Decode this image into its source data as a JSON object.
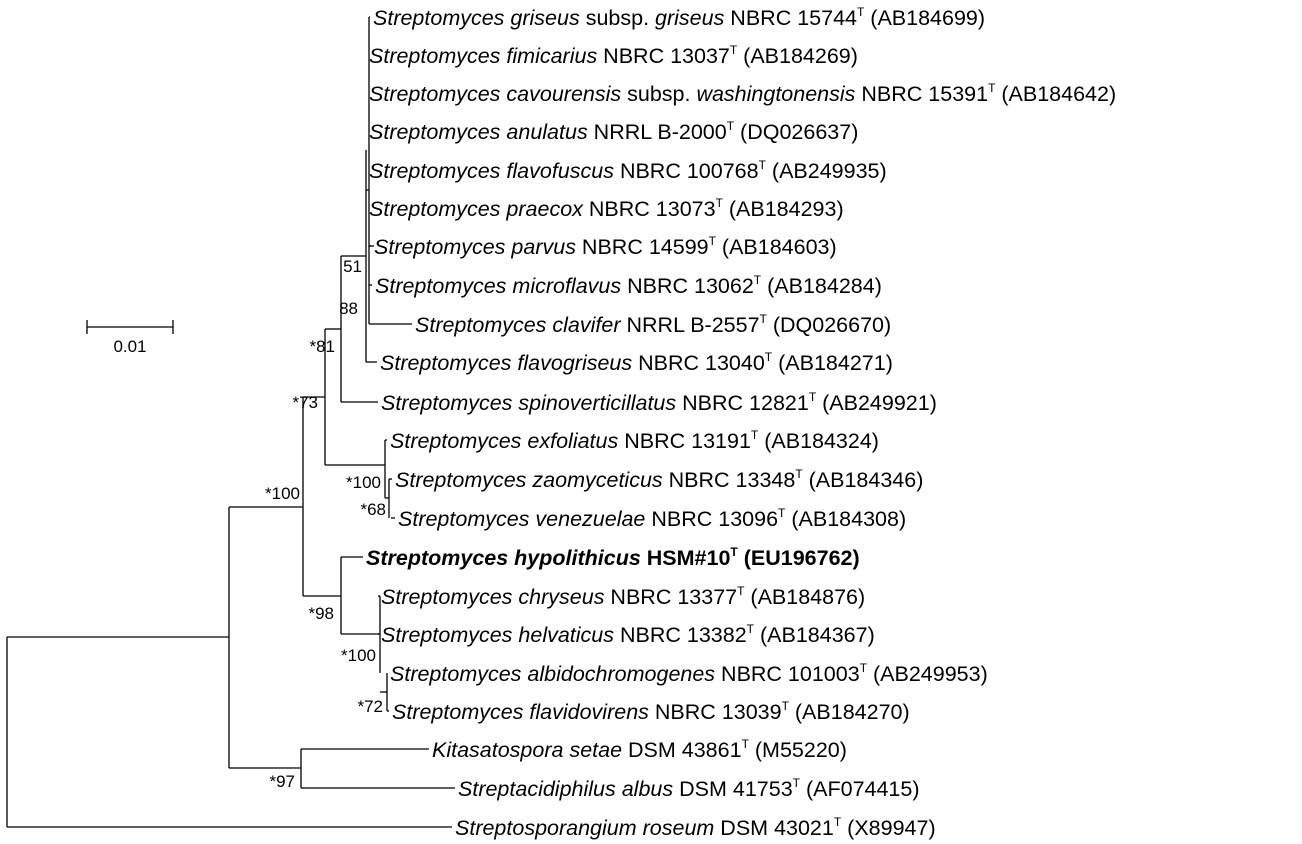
{
  "taxa": [
    {
      "id": "griseus",
      "parts": [
        {
          "t": "Streptomyces griseus",
          "i": true
        },
        {
          "t": " subsp. ",
          "i": false
        },
        {
          "t": "griseus",
          "i": true
        },
        {
          "t": " NBRC 15744",
          "i": false
        }
      ],
      "type_mark": "T",
      "accession": "(AB184699)",
      "bold": false
    },
    {
      "id": "fimicarius",
      "parts": [
        {
          "t": "Streptomyces fimicarius",
          "i": true
        },
        {
          "t": " NBRC 13037",
          "i": false
        }
      ],
      "type_mark": "T",
      "accession": "(AB184269)",
      "bold": false
    },
    {
      "id": "cavourensis",
      "parts": [
        {
          "t": "Streptomyces cavourensis",
          "i": true
        },
        {
          "t": " subsp. ",
          "i": false
        },
        {
          "t": "washingtonensis",
          "i": true
        },
        {
          "t": " NBRC 15391",
          "i": false
        }
      ],
      "type_mark": "T",
      "accession": "(AB184642)",
      "bold": false
    },
    {
      "id": "anulatus",
      "parts": [
        {
          "t": "Streptomyces anulatus",
          "i": true
        },
        {
          "t": " NRRL B-2000",
          "i": false
        }
      ],
      "type_mark": "T",
      "accession": "(DQ026637)",
      "bold": false
    },
    {
      "id": "flavofuscus",
      "parts": [
        {
          "t": "Streptomyces flavofuscus",
          "i": true
        },
        {
          "t": " NBRC 100768",
          "i": false
        }
      ],
      "type_mark": "T",
      "accession": "(AB249935)",
      "bold": false
    },
    {
      "id": "praecox",
      "parts": [
        {
          "t": "Streptomyces praecox",
          "i": true
        },
        {
          "t": " NBRC 13073",
          "i": false
        }
      ],
      "type_mark": "T",
      "accession": "(AB184293)",
      "bold": false
    },
    {
      "id": "parvus",
      "parts": [
        {
          "t": "Streptomyces parvus",
          "i": true
        },
        {
          "t": " NBRC 14599",
          "i": false
        }
      ],
      "type_mark": "T",
      "accession": "(AB184603)",
      "bold": false
    },
    {
      "id": "microflavus",
      "parts": [
        {
          "t": "Streptomyces microflavus",
          "i": true
        },
        {
          "t": " NBRC 13062",
          "i": false
        }
      ],
      "type_mark": "T",
      "accession": "(AB184284)",
      "bold": false
    },
    {
      "id": "clavifer",
      "parts": [
        {
          "t": "Streptomyces clavifer",
          "i": true
        },
        {
          "t": " NRRL B-2557",
          "i": false
        }
      ],
      "type_mark": "T",
      "accession": "(DQ026670)",
      "bold": false
    },
    {
      "id": "flavogriseus",
      "parts": [
        {
          "t": "Streptomyces flavogriseus",
          "i": true
        },
        {
          "t": " NBRC 13040",
          "i": false
        }
      ],
      "type_mark": "T",
      "accession": "(AB184271)",
      "bold": false
    },
    {
      "id": "spinoverticillatus",
      "parts": [
        {
          "t": "Streptomyces spinoverticillatus",
          "i": true
        },
        {
          "t": " NBRC 12821",
          "i": false
        }
      ],
      "type_mark": "T",
      "accession": "(AB249921)",
      "bold": false
    },
    {
      "id": "exfoliatus",
      "parts": [
        {
          "t": "Streptomyces exfoliatus",
          "i": true
        },
        {
          "t": " NBRC 13191",
          "i": false
        }
      ],
      "type_mark": "T",
      "accession": "(AB184324)",
      "bold": false
    },
    {
      "id": "zaomyceticus",
      "parts": [
        {
          "t": "Streptomyces zaomyceticus",
          "i": true
        },
        {
          "t": " NBRC 13348",
          "i": false
        }
      ],
      "type_mark": "T",
      "accession": "(AB184346)",
      "bold": false
    },
    {
      "id": "venezuelae",
      "parts": [
        {
          "t": "Streptomyces venezuelae",
          "i": true
        },
        {
          "t": " NBRC 13096",
          "i": false
        }
      ],
      "type_mark": "T",
      "accession": "(AB184308)",
      "bold": false
    },
    {
      "id": "hypolithicus",
      "parts": [
        {
          "t": "Streptomyces hypolithicus",
          "i": true
        },
        {
          "t": " HSM#10",
          "i": false
        }
      ],
      "type_mark": "T",
      "accession": "(EU196762)",
      "bold": true
    },
    {
      "id": "chryseus",
      "parts": [
        {
          "t": "Streptomyces chryseus",
          "i": true
        },
        {
          "t": " NBRC 13377",
          "i": false
        }
      ],
      "type_mark": "T",
      "accession": "(AB184876)",
      "bold": false
    },
    {
      "id": "helvaticus",
      "parts": [
        {
          "t": "Streptomyces helvaticus",
          "i": true
        },
        {
          "t": " NBRC 13382",
          "i": false
        }
      ],
      "type_mark": "T",
      "accession": "(AB184367)",
      "bold": false
    },
    {
      "id": "albidochromogenes",
      "parts": [
        {
          "t": "Streptomyces albidochromogenes",
          "i": true
        },
        {
          "t": " NBRC 101003",
          "i": false
        }
      ],
      "type_mark": "T",
      "accession": "(AB249953)",
      "bold": false
    },
    {
      "id": "flavidovirens",
      "parts": [
        {
          "t": "Streptomyces flavidovirens",
          "i": true
        },
        {
          "t": " NBRC 13039",
          "i": false
        }
      ],
      "type_mark": "T",
      "accession": "(AB184270)",
      "bold": false
    },
    {
      "id": "kitasatospora",
      "parts": [
        {
          "t": "Kitasatospora setae",
          "i": true
        },
        {
          "t": " DSM 43861",
          "i": false
        }
      ],
      "type_mark": "T",
      "accession": "(M55220)",
      "bold": false
    },
    {
      "id": "streptacidiphilus",
      "parts": [
        {
          "t": "Streptacidiphilus albus",
          "i": true
        },
        {
          "t": " DSM 41753",
          "i": false
        }
      ],
      "type_mark": "T",
      "accession": "(AF074415)",
      "bold": false
    },
    {
      "id": "streptosporangium",
      "parts": [
        {
          "t": "Streptosporangium roseum",
          "i": true
        },
        {
          "t": " DSM 43021",
          "i": false
        }
      ],
      "type_mark": "T",
      "accession": "(X89947)",
      "bold": false
    }
  ],
  "bootstrap": [
    {
      "id": "n51",
      "label": "51"
    },
    {
      "id": "n88",
      "label": "88"
    },
    {
      "id": "n81",
      "label": "*81"
    },
    {
      "id": "n73",
      "label": "*73"
    },
    {
      "id": "n100a",
      "label": "*100"
    },
    {
      "id": "n68",
      "label": "*68"
    },
    {
      "id": "n100b",
      "label": "*100"
    },
    {
      "id": "n98",
      "label": "*98"
    },
    {
      "id": "n100c",
      "label": "*100"
    },
    {
      "id": "n72",
      "label": "*72"
    },
    {
      "id": "n97",
      "label": "*97"
    }
  ],
  "scale_bar": {
    "label": "0.01"
  }
}
